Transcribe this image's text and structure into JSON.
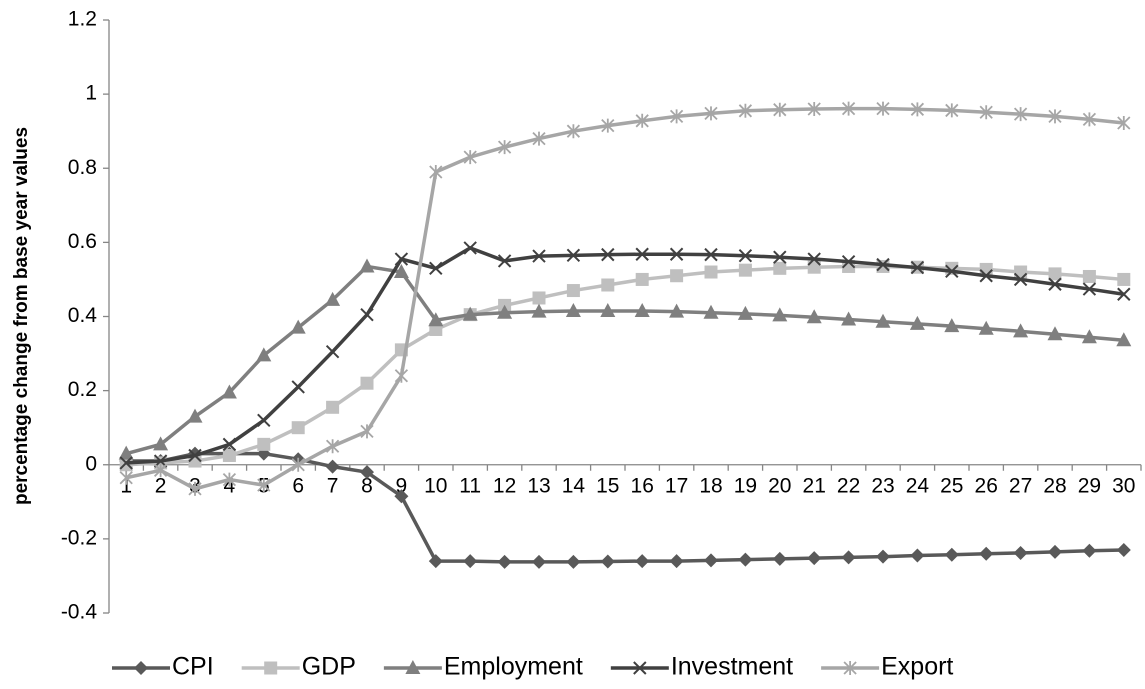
{
  "chart_data": {
    "type": "line",
    "y_label": "percentage change from base year values",
    "categories": [
      1,
      2,
      3,
      4,
      5,
      6,
      7,
      8,
      9,
      10,
      11,
      12,
      13,
      14,
      15,
      16,
      17,
      18,
      19,
      20,
      21,
      22,
      23,
      24,
      25,
      26,
      27,
      28,
      29,
      30
    ],
    "ylim": [
      -0.4,
      1.2
    ],
    "yticks": [
      -0.4,
      -0.2,
      0,
      0.2,
      0.4,
      0.6,
      0.8,
      1,
      1.2
    ],
    "legend": "bottom",
    "series": [
      {
        "name": "CPI",
        "color": "#595959",
        "marker": "diamond",
        "values": [
          0.01,
          0.01,
          0.03,
          0.03,
          0.03,
          0.015,
          -0.005,
          -0.02,
          -0.085,
          -0.26,
          -0.26,
          -0.262,
          -0.262,
          -0.262,
          -0.261,
          -0.26,
          -0.26,
          -0.258,
          -0.256,
          -0.254,
          -0.252,
          -0.25,
          -0.248,
          -0.245,
          -0.243,
          -0.24,
          -0.238,
          -0.235,
          -0.232,
          -0.23
        ]
      },
      {
        "name": "GDP",
        "color": "#bfbfbf",
        "marker": "square",
        "values": [
          0,
          0.005,
          0.01,
          0.025,
          0.055,
          0.1,
          0.155,
          0.22,
          0.31,
          0.365,
          0.405,
          0.43,
          0.45,
          0.47,
          0.485,
          0.5,
          0.51,
          0.52,
          0.525,
          0.53,
          0.533,
          0.535,
          0.535,
          0.533,
          0.53,
          0.527,
          0.52,
          0.515,
          0.508,
          0.5
        ]
      },
      {
        "name": "Employment",
        "color": "#7f7f7f",
        "marker": "triangle",
        "values": [
          0.03,
          0.055,
          0.13,
          0.195,
          0.295,
          0.37,
          0.445,
          0.535,
          0.52,
          0.39,
          0.405,
          0.41,
          0.413,
          0.415,
          0.415,
          0.415,
          0.413,
          0.41,
          0.407,
          0.403,
          0.398,
          0.392,
          0.386,
          0.38,
          0.374,
          0.367,
          0.36,
          0.352,
          0.344,
          0.336
        ]
      },
      {
        "name": "Investment",
        "color": "#404040",
        "marker": "x",
        "values": [
          0.005,
          0.01,
          0.025,
          0.055,
          0.12,
          0.21,
          0.305,
          0.405,
          0.555,
          0.53,
          0.585,
          0.55,
          0.563,
          0.565,
          0.567,
          0.568,
          0.568,
          0.567,
          0.564,
          0.56,
          0.555,
          0.548,
          0.54,
          0.532,
          0.522,
          0.51,
          0.5,
          0.487,
          0.474,
          0.46
        ]
      },
      {
        "name": "Export",
        "color": "#a6a6a6",
        "marker": "star",
        "values": [
          -0.035,
          -0.015,
          -0.065,
          -0.04,
          -0.055,
          0,
          0.05,
          0.09,
          0.24,
          0.79,
          0.83,
          0.857,
          0.88,
          0.9,
          0.915,
          0.928,
          0.94,
          0.948,
          0.955,
          0.958,
          0.96,
          0.961,
          0.961,
          0.959,
          0.956,
          0.951,
          0.946,
          0.94,
          0.932,
          0.922
        ]
      }
    ]
  }
}
